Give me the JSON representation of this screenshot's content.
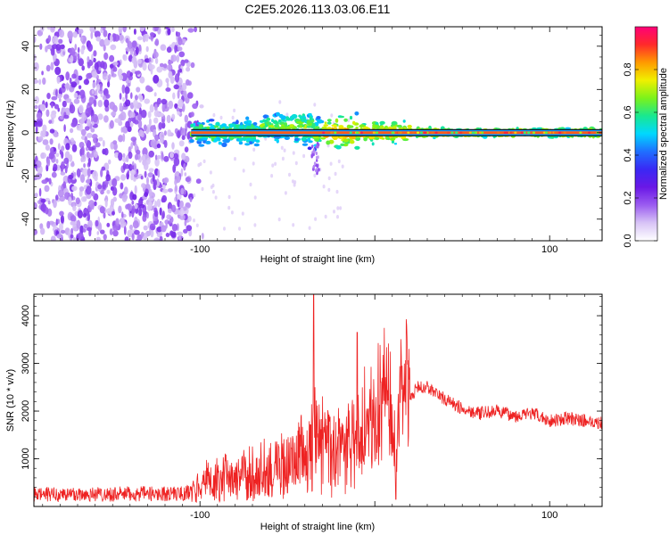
{
  "title": "C2E5.2026.113.03.06.E11",
  "colors": {
    "snr_line": "#ee2222",
    "axis": "#000000",
    "background": "#ffffff",
    "colormap": [
      "#ffffff",
      "#d8c4f6",
      "#9b5cf0",
      "#6a18e6",
      "#3a28f4",
      "#1f6fff",
      "#00d8ff",
      "#19e890",
      "#7cf21a",
      "#f0f000",
      "#ff9a00",
      "#ff2a2a",
      "#ff0078"
    ]
  },
  "chart_data": [
    {
      "type": "heatmap",
      "name": "spectrogram",
      "xlabel": "Height of straight line (km)",
      "ylabel": "Frequency (Hz)",
      "xlim": [
        -195,
        130
      ],
      "ylim": [
        -50,
        49
      ],
      "xticks": [
        -100,
        0,
        100
      ],
      "xtick_labels": [
        "-100",
        "",
        "100"
      ],
      "yticks": [
        -40,
        -20,
        0,
        20,
        40
      ],
      "ytick_labels": [
        "-40",
        "-20",
        "0",
        "20",
        "40"
      ],
      "description_regions": {
        "noise_region_x": [
          -195,
          -105
        ],
        "signal_band_center_hz": 0
      },
      "colorbar": {
        "label": "Normalized spectral amplitude",
        "range": [
          0,
          1
        ],
        "ticks": [
          0.0,
          0.2,
          0.4,
          0.6,
          0.8
        ],
        "tick_labels": [
          "0.0",
          "0.2",
          "0.4",
          "0.6",
          "0.8"
        ]
      }
    },
    {
      "type": "line",
      "name": "snr",
      "xlabel": "Height of straight line (km)",
      "ylabel": "SNR (10 * v/v)",
      "xlim": [
        -195,
        130
      ],
      "ylim": [
        0,
        4450
      ],
      "xticks": [
        -100,
        0,
        100
      ],
      "xtick_labels": [
        "-100",
        "",
        "100"
      ],
      "yticks": [
        1000,
        2000,
        3000,
        4000
      ],
      "ytick_labels": [
        "1000",
        "2000",
        "3000",
        "4000"
      ],
      "x": [
        -195,
        -150,
        -110,
        -105,
        -100,
        -90,
        -80,
        -70,
        -60,
        -50,
        -40,
        -35,
        -30,
        -20,
        -10,
        0,
        5,
        10,
        12,
        15,
        20,
        25,
        30,
        40,
        50,
        60,
        70,
        80,
        90,
        100,
        110,
        120,
        130
      ],
      "y": [
        250,
        260,
        270,
        300,
        420,
        500,
        560,
        620,
        700,
        800,
        1000,
        1400,
        1100,
        1000,
        1200,
        1600,
        1900,
        1500,
        700,
        2000,
        2300,
        2500,
        2500,
        2250,
        2050,
        1950,
        2000,
        1900,
        1950,
        1800,
        1850,
        1800,
        1750
      ],
      "spikes": [
        {
          "x": -35,
          "y": 4450
        },
        {
          "x": -10,
          "y": 3650
        },
        {
          "x": 12,
          "y": 3300
        },
        {
          "x": 12,
          "y": 150
        }
      ]
    }
  ]
}
